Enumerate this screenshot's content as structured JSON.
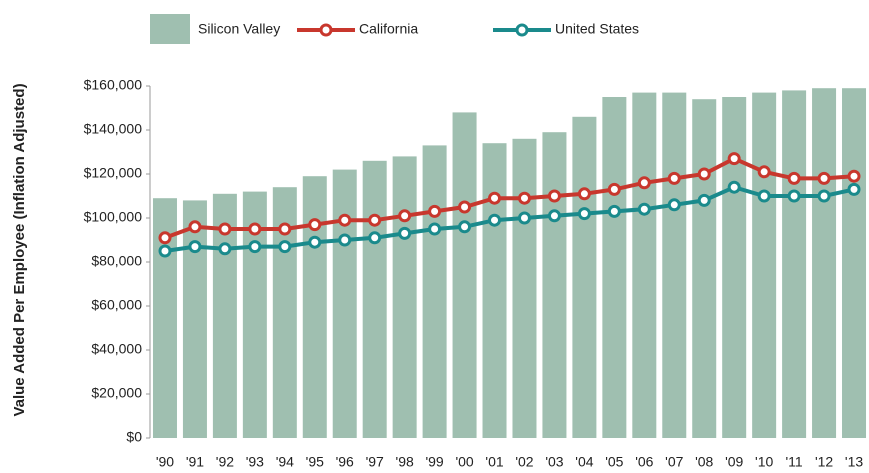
{
  "chart_data": {
    "type": "bar_line",
    "y_label": "Value Added Per Employee (Inflation Adjusted)",
    "categories": [
      "'90",
      "'91",
      "'92",
      "'93",
      "'94",
      "'95",
      "'96",
      "'97",
      "'98",
      "'99",
      "'00",
      "'01",
      "'02",
      "'03",
      "'04",
      "'05",
      "'06",
      "'07",
      "'08",
      "'09",
      "'10",
      "'11",
      "'12",
      "'13"
    ],
    "series": [
      {
        "name": "Silicon Valley",
        "kind": "bar",
        "color": "#9fbfb0",
        "values": [
          109000,
          108000,
          111000,
          112000,
          114000,
          119000,
          122000,
          126000,
          128000,
          133000,
          148000,
          134000,
          136000,
          139000,
          146000,
          155000,
          157000,
          157000,
          154000,
          155000,
          157000,
          158000,
          159000,
          159000
        ]
      },
      {
        "name": "California",
        "kind": "line",
        "color": "#c8372d",
        "values": [
          91000,
          96000,
          95000,
          95000,
          95000,
          97000,
          99000,
          99000,
          101000,
          103000,
          105000,
          109000,
          109000,
          110000,
          111000,
          113000,
          116000,
          118000,
          120000,
          127000,
          121000,
          118000,
          118000,
          119000
        ]
      },
      {
        "name": "United States",
        "kind": "line",
        "color": "#1a8a8c",
        "values": [
          85000,
          87000,
          86000,
          87000,
          87000,
          89000,
          90000,
          91000,
          93000,
          95000,
          96000,
          99000,
          100000,
          101000,
          102000,
          103000,
          104000,
          106000,
          108000,
          114000,
          110000,
          110000,
          110000,
          113000
        ]
      }
    ],
    "ylim": [
      0,
      160000
    ],
    "yticks": [
      {
        "value": 0,
        "label": "$0"
      },
      {
        "value": 20000,
        "label": "$20,000"
      },
      {
        "value": 40000,
        "label": "$40,000"
      },
      {
        "value": 60000,
        "label": "$60,000"
      },
      {
        "value": 80000,
        "label": "$80,000"
      },
      {
        "value": 100000,
        "label": "$100,000"
      },
      {
        "value": 120000,
        "label": "$120,000"
      },
      {
        "value": 140000,
        "label": "$140,000"
      },
      {
        "value": 160000,
        "label": "$160,000"
      }
    ],
    "grid": false
  }
}
